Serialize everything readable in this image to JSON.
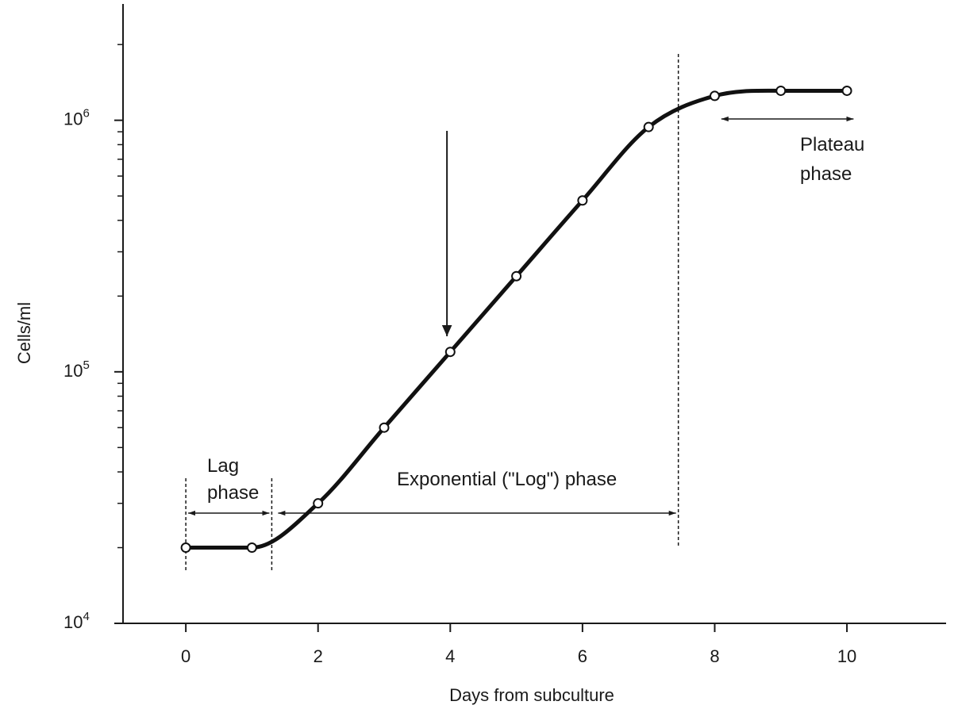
{
  "chart_data": {
    "type": "line",
    "title": "",
    "xlabel": "Days from subculture",
    "ylabel": "Cells/ml",
    "x_scale": "linear",
    "y_scale": "log",
    "xlim": [
      -0.95,
      11.5
    ],
    "ylim": [
      10000,
      2900000
    ],
    "xticks": [
      0,
      2,
      4,
      6,
      8,
      10
    ],
    "xtick_labels": [
      "0",
      "2",
      "4",
      "6",
      "8",
      "10"
    ],
    "yticks": [
      10000,
      100000,
      1000000
    ],
    "ytick_labels": [
      {
        "base": "10",
        "exp": "4"
      },
      {
        "base": "10",
        "exp": "5"
      },
      {
        "base": "10",
        "exp": "6"
      }
    ],
    "grid": false,
    "legend": false,
    "series": [
      {
        "x": [
          0,
          1,
          2,
          3,
          4,
          5,
          6,
          7,
          8,
          9,
          10
        ],
        "y": [
          20000,
          20000,
          30000,
          60000,
          120000,
          240000,
          480000,
          940000,
          1250000,
          1310000,
          1310000
        ],
        "markers": "open-circle"
      }
    ],
    "annotations": {
      "lag": {
        "line1": "Lag",
        "line2": "phase"
      },
      "exponential": "Exponential (\"Log\") phase",
      "plateau": {
        "line1": "Plateau",
        "line2": "phase"
      }
    },
    "phase_boundaries_x": [
      0,
      1.3,
      7.45
    ],
    "arrow_x": 3.95
  }
}
